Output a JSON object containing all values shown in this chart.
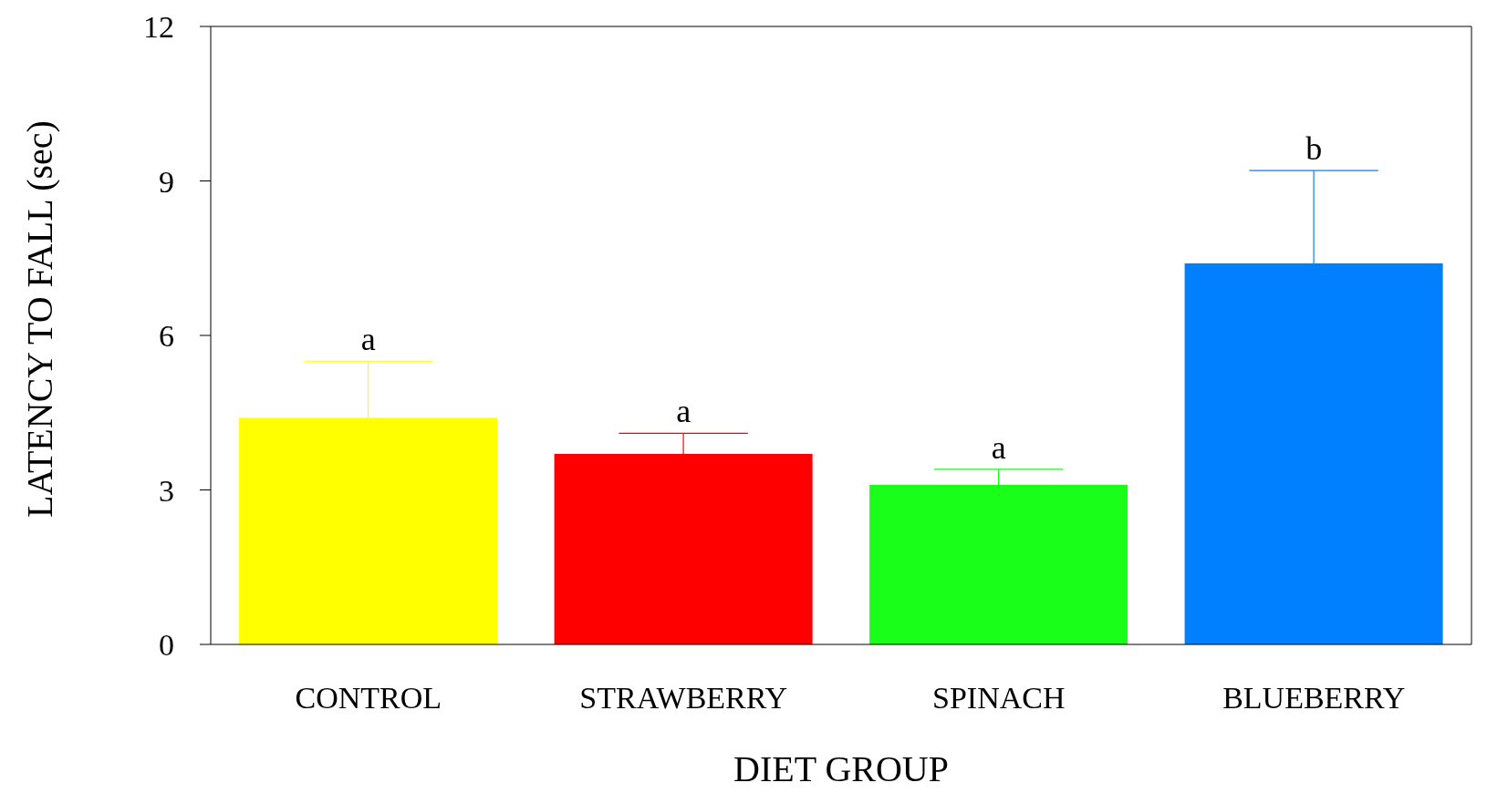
{
  "chart_data": {
    "type": "bar",
    "xlabel": "DIET GROUP",
    "ylabel": "LATENCY TO FALL  (sec)",
    "categories": [
      "CONTROL",
      "STRAWBERRY",
      "SPINACH",
      "BLUEBERRY"
    ],
    "values": [
      4.4,
      3.7,
      3.1,
      7.4
    ],
    "errors": [
      [
        4.4,
        5.5
      ],
      [
        3.7,
        4.1
      ],
      [
        3.1,
        3.4
      ],
      [
        7.4,
        9.2
      ]
    ],
    "colors": [
      "#ffff00",
      "#ff0000",
      "#19ff19",
      "#0080ff"
    ],
    "ylim": [
      0,
      12
    ],
    "yticks": [
      0,
      3,
      6,
      9,
      12
    ],
    "grid": false,
    "legend": false,
    "annotations": [
      {
        "text": "a",
        "x": "CONTROL",
        "y": 5.5
      },
      {
        "text": "a",
        "x": "STRAWBERRY",
        "y": 4.1
      },
      {
        "text": "a",
        "x": "SPINACH",
        "y": 3.4
      },
      {
        "text": "b",
        "x": "BLUEBERRY",
        "y": 9.2
      }
    ]
  }
}
